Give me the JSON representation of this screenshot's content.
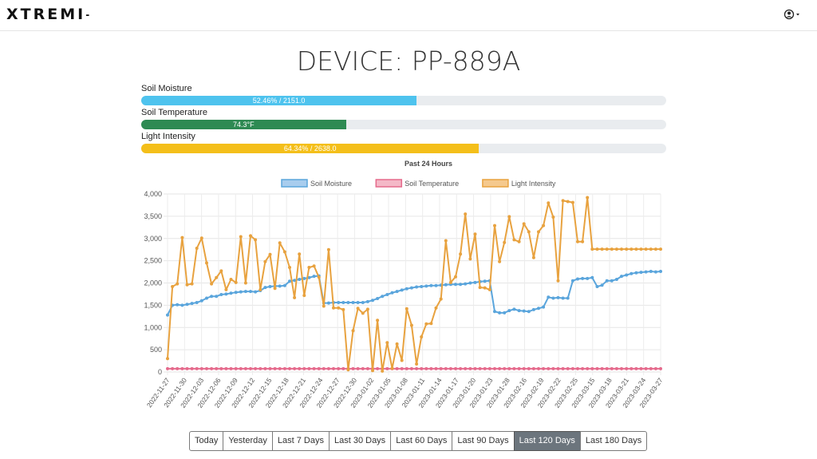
{
  "nav": {
    "brand": "XTREMI",
    "brand_suffix": "-"
  },
  "page": {
    "title": "DEVICE: PP-889A"
  },
  "meters": [
    {
      "label": "Soil Moisture",
      "text": "52.46% / 2151.0",
      "fraction": 0.5246,
      "color": "#4ec3ee"
    },
    {
      "label": "Soil Temperature",
      "text": "74.3°F",
      "fraction": 0.39,
      "color": "#2e8a53"
    },
    {
      "label": "Light Intensity",
      "text": "64.34% / 2638.0",
      "fraction": 0.6434,
      "color": "#f4bf1a"
    }
  ],
  "ranges": {
    "buttons": [
      "Today",
      "Yesterday",
      "Last 7 Days",
      "Last 30 Days",
      "Last 60 Days",
      "Last 90 Days",
      "Last 120 Days",
      "Last 180 Days"
    ],
    "active_index": 6
  },
  "chart_data": {
    "type": "line",
    "title": "Past 24 Hours",
    "ylim": [
      0,
      4000
    ],
    "yticks": [
      0,
      500,
      1000,
      1500,
      2000,
      2500,
      3000,
      3500,
      4000
    ],
    "ytick_labels": [
      "0",
      "500",
      "1,000",
      "1,500",
      "2,000",
      "2,500",
      "3,000",
      "3,500",
      "4,000"
    ],
    "grid": true,
    "legend_position": "top",
    "x_tick_labels": [
      "2022-11-27",
      "2022-11-30",
      "2022-12-03",
      "2022-12-06",
      "2022-12-09",
      "2022-12-12",
      "2022-12-15",
      "2022-12-18",
      "2022-12-21",
      "2022-12-24",
      "2022-12-27",
      "2022-12-30",
      "2023-01-02",
      "2023-01-05",
      "2023-01-08",
      "2023-01-11",
      "2023-01-14",
      "2023-01-17",
      "2023-01-20",
      "2023-01-23",
      "2023-01-28",
      "2023-02-16",
      "2023-02-19",
      "2023-02-22",
      "2023-02-25",
      "2023-03-15",
      "2023-03-18",
      "2023-03-21",
      "2023-03-24",
      "2023-03-27"
    ],
    "series": [
      {
        "name": "Soil Moisture",
        "color": "#5aa5dc",
        "fill": "#a8cdee",
        "values": [
          1280,
          1500,
          1510,
          1500,
          1520,
          1540,
          1560,
          1600,
          1660,
          1700,
          1700,
          1740,
          1750,
          1770,
          1790,
          1800,
          1810,
          1810,
          1800,
          1830,
          1900,
          1920,
          1930,
          1930,
          1940,
          2040,
          2060,
          2080,
          2100,
          2120,
          2150,
          2160,
          1550,
          1550,
          1560,
          1560,
          1560,
          1560,
          1560,
          1560,
          1560,
          1580,
          1610,
          1650,
          1700,
          1740,
          1780,
          1810,
          1840,
          1870,
          1890,
          1910,
          1920,
          1930,
          1940,
          1940,
          1950,
          1960,
          1970,
          1970,
          1970,
          1980,
          2000,
          2010,
          2030,
          2040,
          2050,
          1360,
          1330,
          1330,
          1380,
          1410,
          1380,
          1370,
          1360,
          1400,
          1430,
          1460,
          1680,
          1660,
          1670,
          1660,
          1660,
          2050,
          2090,
          2100,
          2100,
          2120,
          1920,
          1950,
          2050,
          2050,
          2080,
          2150,
          2180,
          2210,
          2230,
          2240,
          2250,
          2260,
          2250,
          2260
        ]
      },
      {
        "name": "Soil Temperature",
        "color": "#e56a8c",
        "fill": "#f4b8c7",
        "values": [
          74,
          74,
          74,
          74,
          74,
          74,
          74,
          74,
          74,
          74,
          74,
          74,
          74,
          74,
          74,
          74,
          74,
          74,
          74,
          74,
          74,
          74,
          74,
          74,
          74,
          74,
          74,
          74,
          74,
          74,
          74,
          74,
          74,
          74,
          74,
          74,
          74,
          74,
          74,
          74,
          74,
          74,
          74,
          74,
          74,
          74,
          74,
          74,
          74,
          74,
          74,
          74,
          74,
          74,
          74,
          74,
          74,
          74,
          74,
          74,
          74,
          74,
          74,
          74,
          74,
          74,
          74,
          74,
          74,
          74,
          74,
          74,
          74,
          74,
          74,
          74,
          74,
          74,
          74,
          74,
          74,
          74,
          74,
          74,
          74,
          74,
          74,
          74,
          74,
          74,
          74,
          74,
          74,
          74,
          74,
          74,
          74,
          74,
          74,
          74,
          74,
          74
        ]
      },
      {
        "name": "Light Intensity",
        "color": "#e8a23f",
        "fill": "#f5c98d",
        "values": [
          300,
          1920,
          1980,
          3020,
          1960,
          1980,
          2780,
          3010,
          2450,
          1980,
          2120,
          2270,
          1850,
          2080,
          2010,
          3040,
          2000,
          3060,
          2970,
          1850,
          2480,
          2640,
          1880,
          2900,
          2700,
          2350,
          1670,
          2650,
          1720,
          2350,
          2380,
          2130,
          1480,
          2750,
          1440,
          1440,
          1400,
          50,
          930,
          1430,
          1320,
          1410,
          30,
          1160,
          20,
          660,
          80,
          630,
          260,
          1420,
          1050,
          180,
          790,
          1080,
          1090,
          1440,
          1640,
          2950,
          2010,
          2140,
          2650,
          3550,
          2540,
          3100,
          1900,
          1890,
          1850,
          3290,
          2480,
          2910,
          3490,
          2970,
          2930,
          3330,
          3150,
          2570,
          3150,
          3290,
          3800,
          3480,
          2050,
          3850,
          3830,
          3810,
          2930,
          2930,
          3920,
          2760,
          2760,
          2760,
          2760,
          2760,
          2760,
          2760,
          2760,
          2760,
          2760,
          2760,
          2760,
          2760,
          2760,
          2760
        ]
      }
    ]
  }
}
